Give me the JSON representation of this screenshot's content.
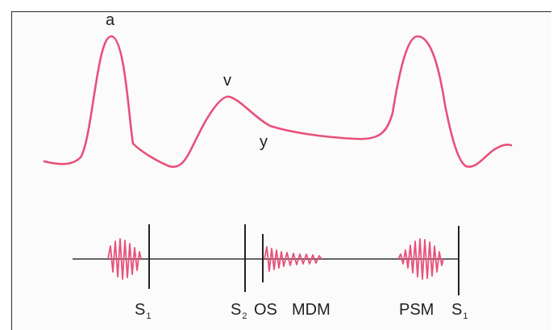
{
  "waveform": {
    "labels": {
      "a": "a",
      "v": "v",
      "y": "y"
    }
  },
  "phonocardiogram": {
    "s1_first": {
      "main": "S",
      "sub": "1"
    },
    "s2": {
      "main": "S",
      "sub": "2"
    },
    "os": "OS",
    "mdm": "MDM",
    "psm": "PSM",
    "s1_second": {
      "main": "S",
      "sub": "1"
    }
  },
  "colors": {
    "trace": "#e8507a",
    "axis": "#333333"
  }
}
